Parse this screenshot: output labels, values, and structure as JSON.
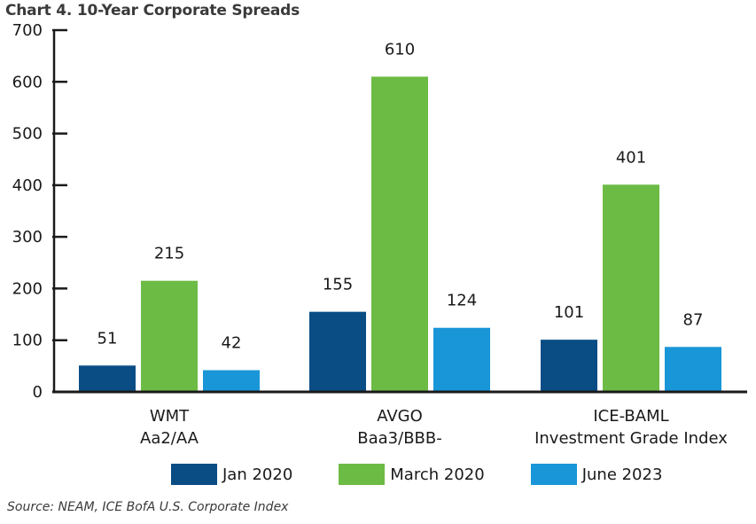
{
  "chart_data": {
    "type": "bar",
    "title": "Chart 4. 10-Year Corporate Spreads",
    "categories": [
      [
        "WMT",
        "Aa2/AA"
      ],
      [
        "AVGO",
        "Baa3/BBB-"
      ],
      [
        "ICE-BAML",
        "Investment Grade Index"
      ]
    ],
    "series": [
      {
        "name": "Jan 2020",
        "color": "#0a4d85",
        "values": [
          51,
          155,
          101
        ]
      },
      {
        "name": "March 2020",
        "color": "#6cbb45",
        "values": [
          215,
          610,
          401
        ]
      },
      {
        "name": "June 2023",
        "color": "#1996d8",
        "values": [
          42,
          124,
          87
        ]
      }
    ],
    "ylim": [
      0,
      700
    ],
    "yticks": [
      0,
      100,
      200,
      300,
      400,
      500,
      600,
      700
    ],
    "xlabel": "",
    "ylabel": "",
    "grid": false,
    "legend_position": "bottom",
    "source": "Source: NEAM, ICE BofA U.S. Corporate Index"
  }
}
